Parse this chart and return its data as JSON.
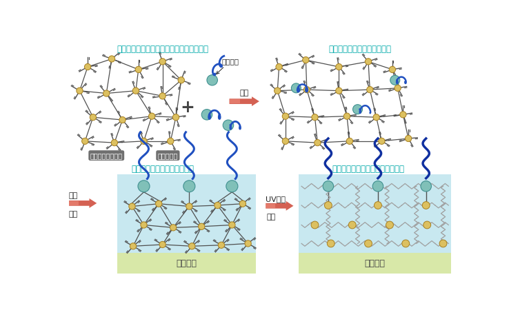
{
  "tl_title": "ハードコート主剤に防汚添加剤を少量添加",
  "tr_title": "添加剤は配合溶液中では溶解",
  "bl_title": "塗工・久燥により表面に露出",
  "br_title": "硬化によりフッ素鎖が表面に固定",
  "label_tl_left": "ハードコート主剤",
  "label_tl_right": "防汚添加剤",
  "label_fukuso": "フッ素鎖",
  "label_haigo": "配合",
  "label_toko": "塗工",
  "label_kanso": "久燥",
  "label_uv": "UV照射",
  "label_koka": "硬化",
  "label_kiban1": "基材表面",
  "label_kiban2": "基材表面",
  "yellow_color": "#DCC060",
  "teal_color": "#80C0B8",
  "blue_color": "#2050C0",
  "dark_blue_color": "#1030A0",
  "line_color": "#505050",
  "bg_blue": "#C8E8F0",
  "bg_green": "#D8E8A8",
  "title_color": "#00AAAA",
  "arrow_red": "#D05040",
  "arrow_light": "#F09080",
  "text_dark": "#222222",
  "label_box_gray": "#707070"
}
